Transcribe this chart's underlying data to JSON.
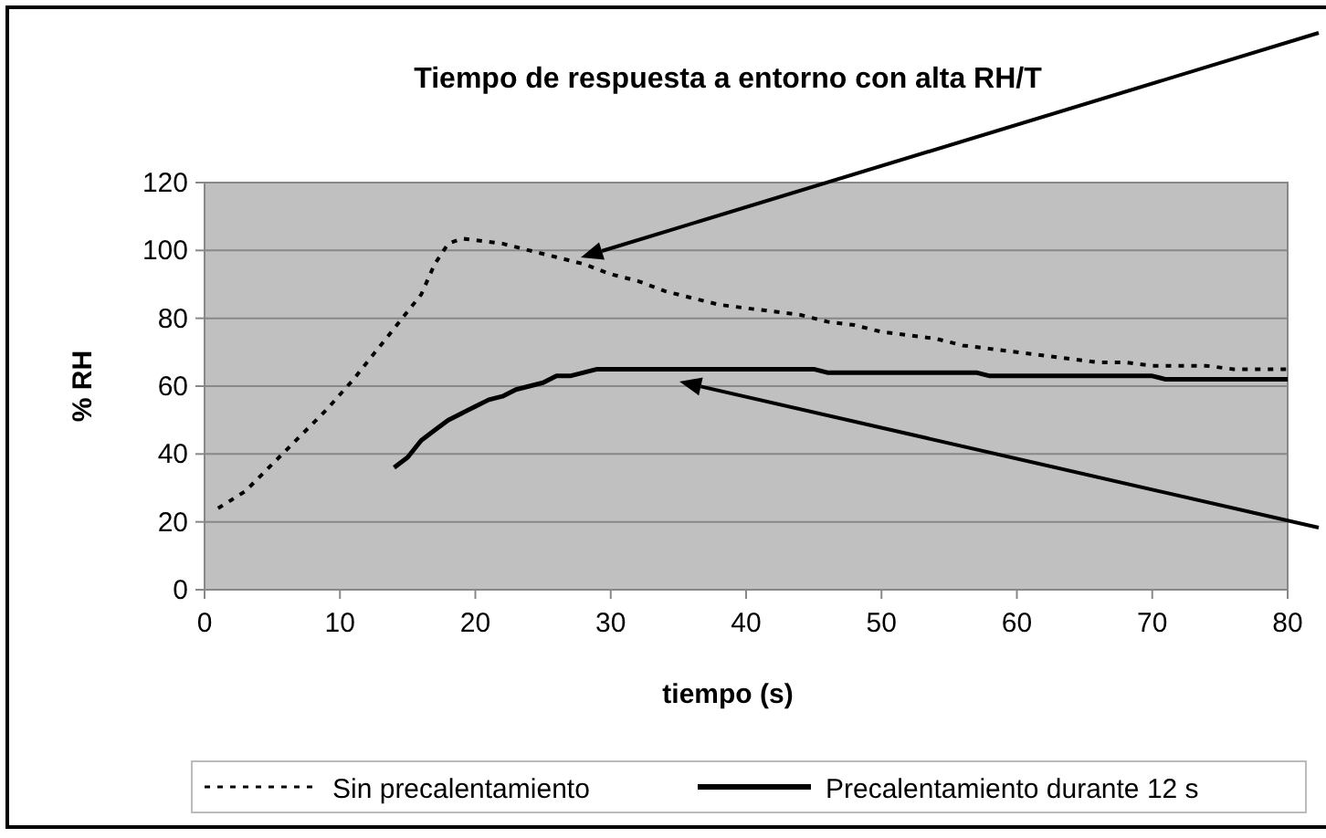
{
  "chart_data": {
    "type": "line",
    "title": "Tiempo de respuesta a entorno con alta RH/T",
    "xlabel": "tiempo (s)",
    "ylabel": "% RH",
    "xlim": [
      0,
      80
    ],
    "xticks": [
      0,
      10,
      20,
      30,
      40,
      50,
      60,
      70,
      80
    ],
    "ylim": [
      0,
      120
    ],
    "yticks": [
      0,
      20,
      40,
      60,
      80,
      100,
      120
    ],
    "grid": "y",
    "legend": "bottom",
    "marker": "none",
    "series": [
      {
        "name": "Sin precalentamiento",
        "color": "#000000",
        "line_style": "dotted",
        "x": [
          1,
          3,
          5,
          7,
          9,
          11,
          13,
          15,
          16,
          17,
          18,
          19,
          20,
          22,
          24,
          26,
          28,
          30,
          32,
          34,
          36,
          38,
          40,
          42,
          44,
          46,
          48,
          50,
          52,
          54,
          56,
          58,
          60,
          62,
          64,
          66,
          68,
          70,
          72,
          74,
          76,
          78,
          80
        ],
        "values": [
          24,
          29,
          37,
          45,
          53,
          62,
          72,
          82,
          87,
          96,
          102,
          103.5,
          103,
          102,
          100,
          98,
          96,
          93,
          91,
          88,
          86,
          84,
          83,
          82,
          81,
          79,
          78,
          76,
          75,
          74,
          72,
          71,
          70,
          69,
          68,
          67,
          67,
          66,
          66,
          66,
          65,
          65,
          65
        ]
      },
      {
        "name": "Precalentamiento durante 12 s",
        "color": "#000000",
        "line_style": "solid",
        "x": [
          14,
          15,
          16,
          17,
          18,
          19,
          20,
          21,
          22,
          23,
          24,
          25,
          26,
          27,
          28,
          29,
          30,
          35,
          40,
          45,
          46,
          57,
          58,
          70,
          71,
          80
        ],
        "values": [
          36,
          39,
          44,
          47,
          50,
          52,
          54,
          56,
          57,
          59,
          60,
          61,
          63,
          63,
          64,
          65,
          65,
          65,
          65,
          65,
          64,
          64,
          63,
          63,
          62,
          62
        ]
      }
    ]
  }
}
